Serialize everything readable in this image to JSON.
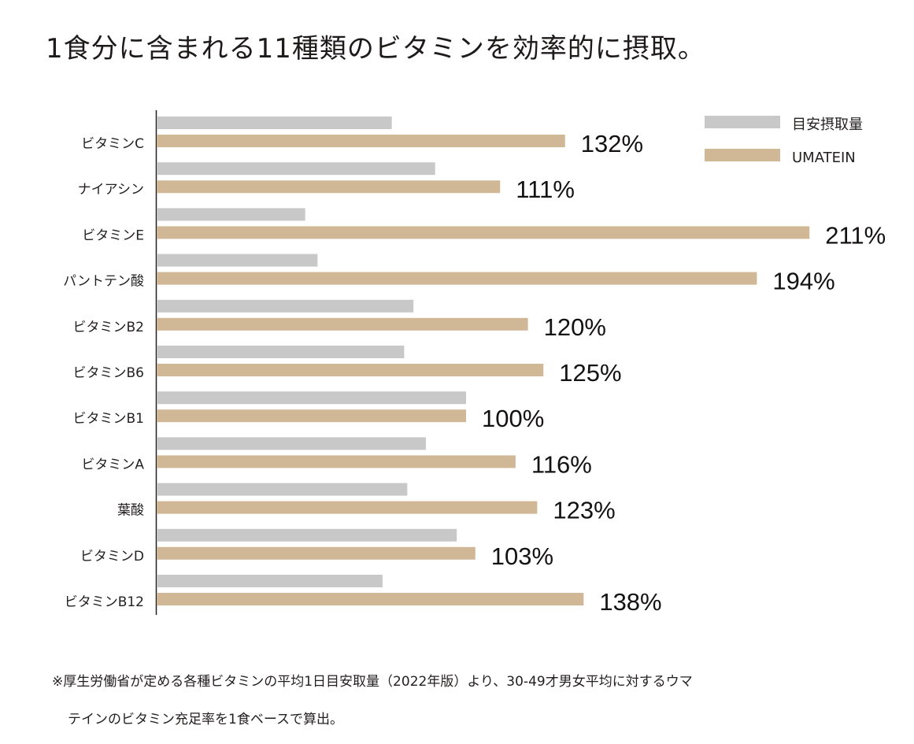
{
  "title": "1食分に含まれる11種類のビタミンを効率的に摂取。",
  "footnote": {
    "line1": "※厚生労働省が定める各種ビタミンの平均1日目安取量（2022年版）より、30-49才男女平均に対するウマ",
    "line2": "テインのビタミン充足率を1食ベースで算出。"
  },
  "colors": {
    "reference": "#c8c8c8",
    "umatein": "#d0b896",
    "axis": "#231f1f",
    "text": "#1e1a1a"
  },
  "chart_data": {
    "type": "bar",
    "orientation": "horizontal",
    "title": "1食分に含まれる11種類のビタミンを効率的に摂取。",
    "xlabel": "",
    "ylabel": "",
    "xlim": [
      0,
      211
    ],
    "grid": false,
    "legend_position": "top-right",
    "categories": [
      "ビタミンC",
      "ナイアシン",
      "ビタミンE",
      "パントテン酸",
      "ビタミンB2",
      "ビタミンB6",
      "ビタミンB1",
      "ビタミンA",
      "葉酸",
      "ビタミンD",
      "ビタミンB12"
    ],
    "series": [
      {
        "name": "目安摂取量",
        "color": "#c8c8c8",
        "values": [
          76,
          90,
          48,
          52,
          83,
          80,
          100,
          87,
          81,
          97,
          73
        ]
      },
      {
        "name": "UMATEIN",
        "color": "#d0b896",
        "values": [
          132,
          111,
          211,
          194,
          120,
          125,
          100,
          116,
          123,
          103,
          138
        ]
      }
    ],
    "data_labels": [
      "132%",
      "111%",
      "211%",
      "194%",
      "120%",
      "125%",
      "100%",
      "116%",
      "123%",
      "103%",
      "138%"
    ]
  }
}
